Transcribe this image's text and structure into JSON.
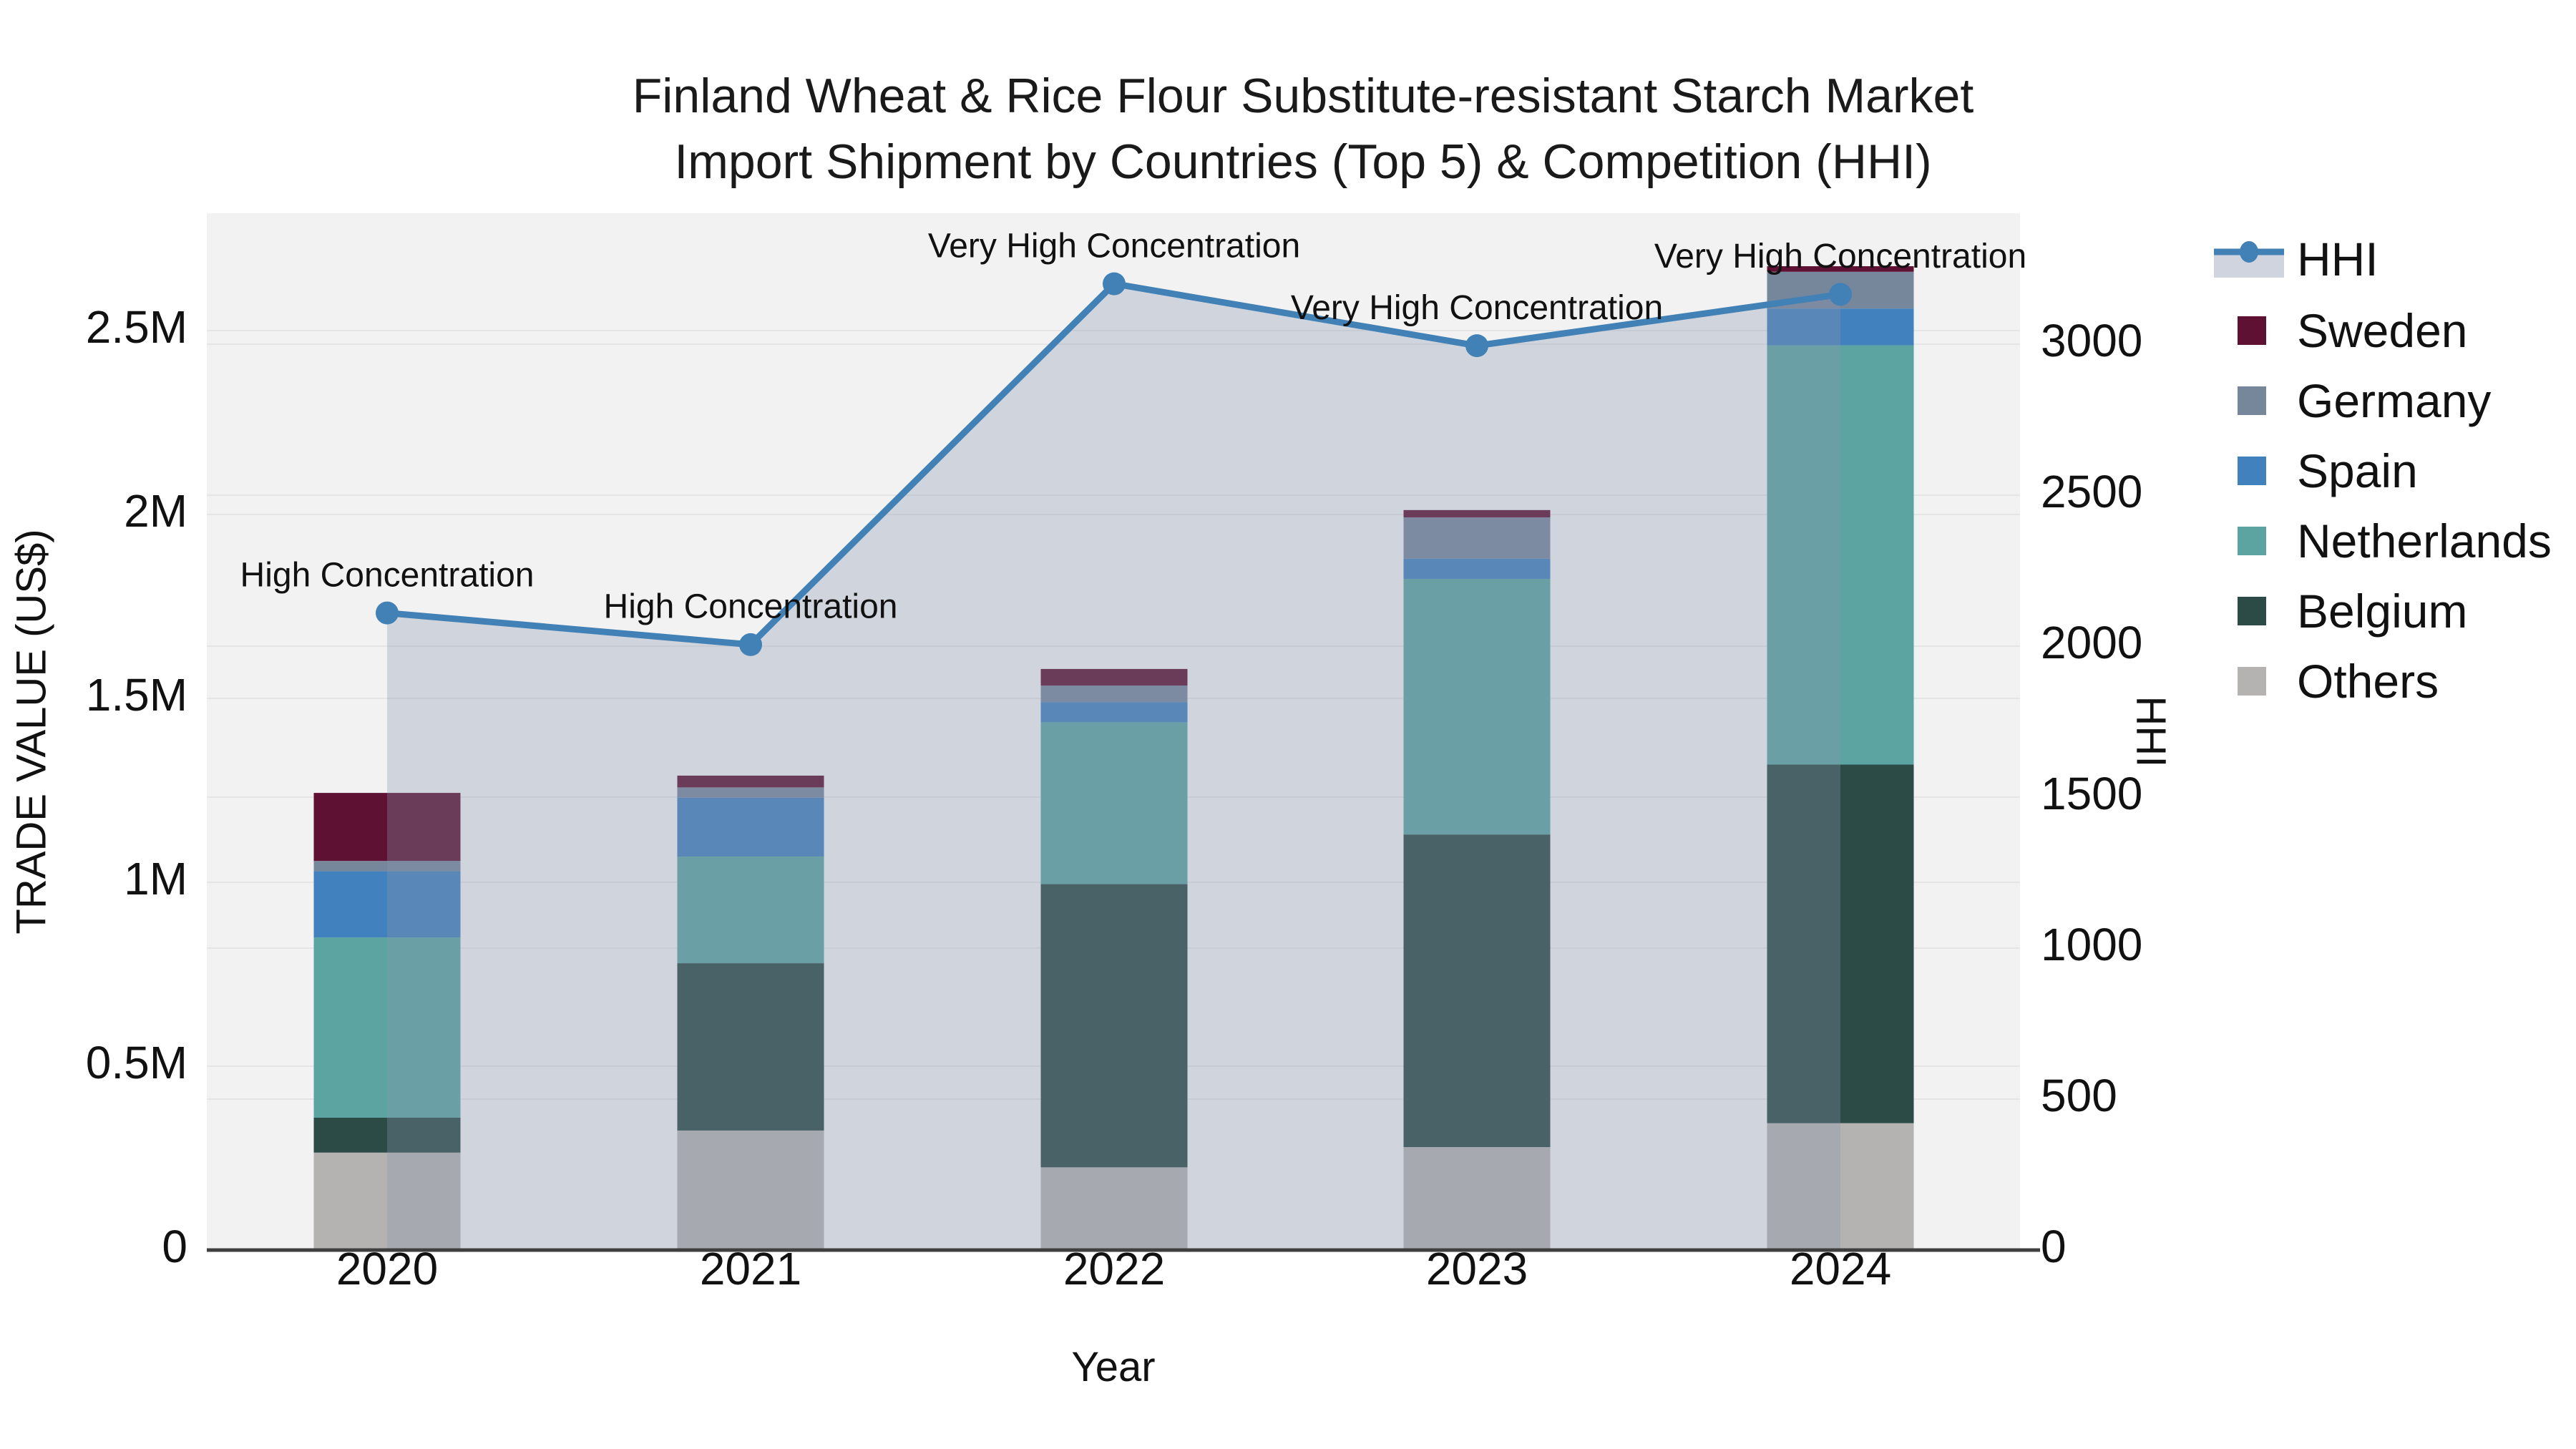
{
  "title": {
    "line1": "Finland Wheat & Rice Flour Substitute-resistant Starch Market",
    "line2": "Import Shipment by Countries (Top 5) & Competition (HHI)"
  },
  "legend": {
    "items": [
      {
        "label": "HHI",
        "type": "line",
        "color": "#4181b6",
        "fill": "#cfd4de"
      },
      {
        "label": "Sweden",
        "type": "swatch",
        "color": "#5e1133"
      },
      {
        "label": "Germany",
        "type": "swatch",
        "color": "#76879b"
      },
      {
        "label": "Spain",
        "type": "swatch",
        "color": "#4181bd"
      },
      {
        "label": "Netherlands",
        "type": "swatch",
        "color": "#5ba4a1"
      },
      {
        "label": "Belgium",
        "type": "swatch",
        "color": "#2c4b47"
      },
      {
        "label": "Others",
        "type": "swatch",
        "color": "#b4b3b1"
      }
    ]
  },
  "chart_data": {
    "type": "bar",
    "subtype": "stacked-bars-with-line",
    "categories": [
      "2020",
      "2021",
      "2022",
      "2023",
      "2024"
    ],
    "xlabel": "Year",
    "ylabel_left": "TRADE VALUE (US$)",
    "ylabel_right": "HHI",
    "y_left_ticks": [
      "0",
      "0.5M",
      "1M",
      "1.5M",
      "2M",
      "2.5M"
    ],
    "y_left_tick_values": [
      0,
      500000,
      1000000,
      1500000,
      2000000,
      2500000
    ],
    "y_left_max": 2820000,
    "y_right_ticks": [
      "0",
      "500",
      "1000",
      "1500",
      "2000",
      "2500",
      "3000"
    ],
    "y_right_tick_values": [
      0,
      500,
      1000,
      1500,
      2000,
      2500,
      3000
    ],
    "y_right_max": 3430,
    "grid": true,
    "legend_position": "right",
    "series": [
      {
        "name": "Others",
        "color": "#b4b3b1",
        "values": [
          265000,
          325000,
          225000,
          280000,
          345000
        ]
      },
      {
        "name": "Belgium",
        "color": "#2c4b47",
        "values": [
          95000,
          455000,
          770000,
          850000,
          975000
        ]
      },
      {
        "name": "Netherlands",
        "color": "#5ba4a1",
        "values": [
          490000,
          290000,
          440000,
          695000,
          1140000
        ]
      },
      {
        "name": "Spain",
        "color": "#4181bd",
        "values": [
          180000,
          160000,
          55000,
          55000,
          100000
        ]
      },
      {
        "name": "Germany",
        "color": "#76879b",
        "values": [
          28000,
          28000,
          45000,
          112000,
          100000
        ]
      },
      {
        "name": "Sweden",
        "color": "#5e1133",
        "values": [
          185000,
          32000,
          45000,
          20000,
          15000
        ]
      }
    ],
    "line_series": {
      "name": "HHI",
      "color": "#4181b6",
      "fill_color": "#8896ad",
      "fill_opacity": 0.32,
      "values": [
        2110,
        2005,
        3200,
        2995,
        3165
      ]
    },
    "annotations": [
      "High Concentration",
      "High Concentration",
      "Very High Concentration",
      "Very High Concentration",
      "Very High Concentration"
    ],
    "colors": {
      "plot_bg": "#f2f2f2",
      "paper_bg": "#ffffff",
      "grid": "#e5e5e5",
      "axis_line": "#3f3f3f",
      "text": "#111111"
    }
  }
}
